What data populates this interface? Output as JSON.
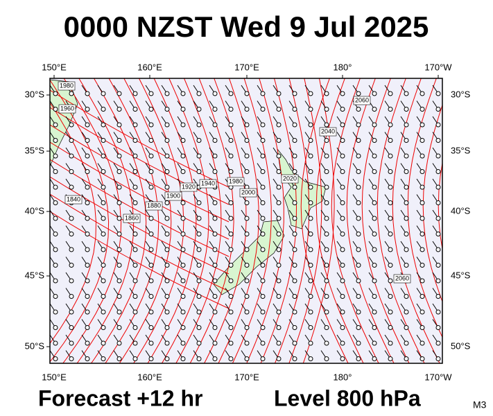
{
  "title": "0000 NZST Wed 9 Jul 2025",
  "map": {
    "lon_labels": [
      "150°E",
      "160°E",
      "170°E",
      "180°",
      "170°W"
    ],
    "lat_labels": [
      "30°S",
      "35°S",
      "40°S",
      "45°S",
      "50°S"
    ],
    "contour_labels": [
      "1980",
      "1960",
      "1840",
      "1860",
      "1880",
      "1900",
      "1920",
      "1940",
      "1980",
      "2000",
      "2020",
      "2040",
      "2060",
      "2060"
    ]
  },
  "footer": {
    "forecast": "Forecast +12 hr",
    "level": "Level 800 hPa",
    "code": "M3"
  }
}
